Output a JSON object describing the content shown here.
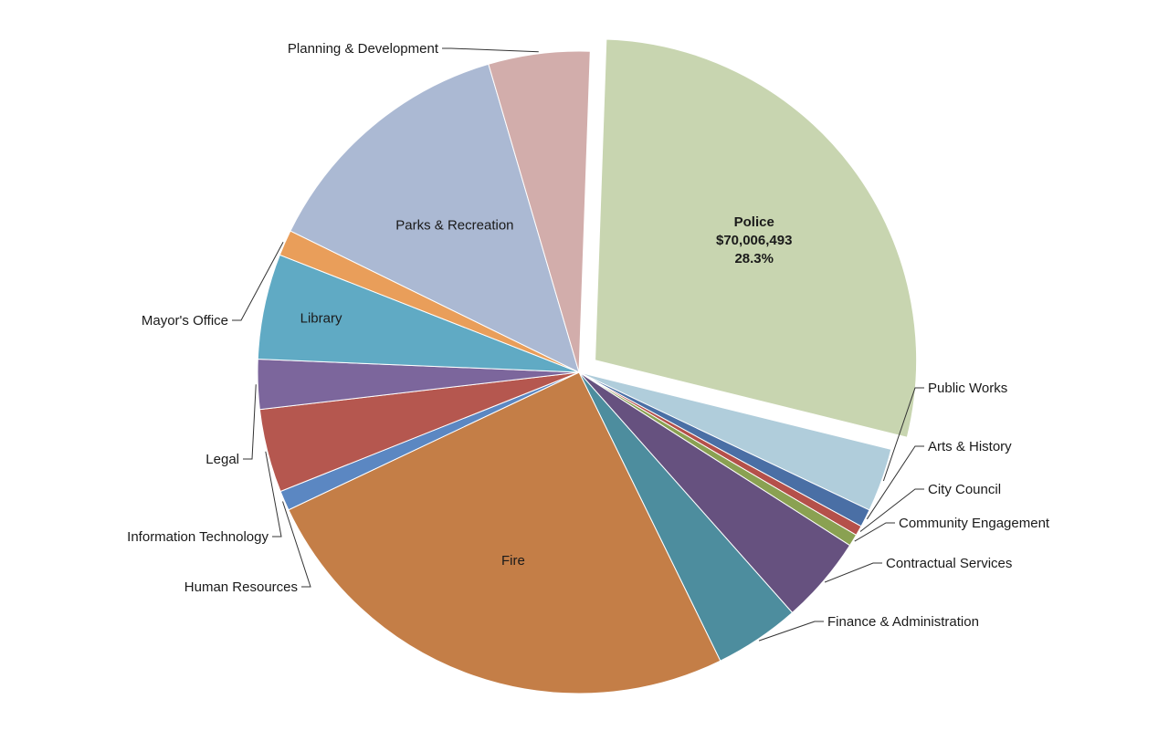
{
  "chart_data": {
    "type": "pie",
    "slices": [
      {
        "label": "Police",
        "value": 28.3,
        "amount": "$70,006,493",
        "percent": "28.3%",
        "color": "#c8d5b0",
        "exploded": true,
        "inside": true
      },
      {
        "label": "Public Works",
        "value": 3.2,
        "color": "#b0cddb"
      },
      {
        "label": "Arts & History",
        "value": 0.9,
        "color": "#4a6fa5"
      },
      {
        "label": "City Council",
        "value": 0.5,
        "color": "#b5504a"
      },
      {
        "label": "Community Engagement",
        "value": 0.6,
        "color": "#8aa152"
      },
      {
        "label": "Contractual Services",
        "value": 4.4,
        "color": "#66517f"
      },
      {
        "label": "Finance & Administration",
        "value": 4.3,
        "color": "#4d8d9e"
      },
      {
        "label": "Fire",
        "value": 25.2,
        "color": "#c47e47",
        "inside": true
      },
      {
        "label": "Human Resources",
        "value": 1.0,
        "color": "#5b87c2"
      },
      {
        "label": "Information Technology",
        "value": 4.2,
        "color": "#b5574f"
      },
      {
        "label": "Legal",
        "value": 2.5,
        "color": "#7c669c"
      },
      {
        "label": "Library",
        "value": 5.3,
        "color": "#60aac4",
        "inside": true
      },
      {
        "label": "Mayor's Office",
        "value": 1.3,
        "color": "#e99e5a"
      },
      {
        "label": "Parks & Recreation",
        "value": 13.2,
        "color": "#abb9d3",
        "inside": true
      },
      {
        "label": "Planning & Development",
        "value": 5.1,
        "color": "#d2adab"
      }
    ],
    "start_angle_deg": 88,
    "direction": "clockwise",
    "legend": "none"
  }
}
